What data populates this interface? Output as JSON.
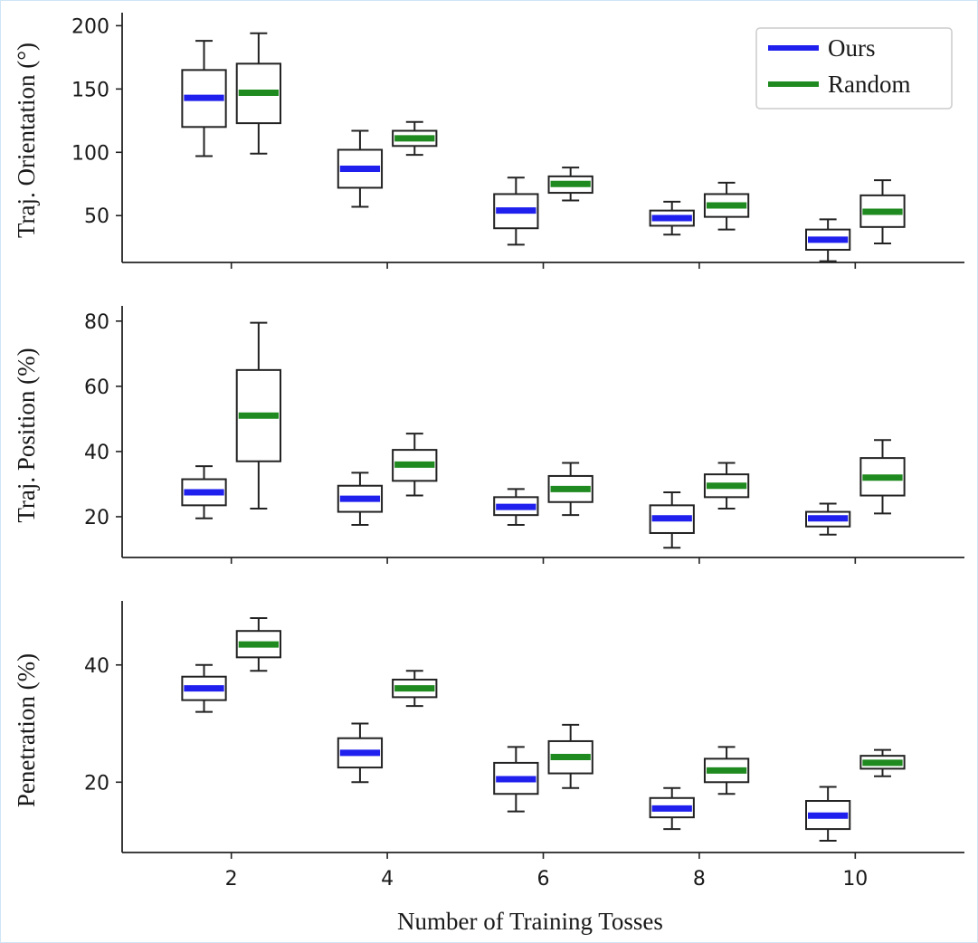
{
  "chart_data": [
    {
      "type": "box",
      "ylabel": "Traj. Orientation (°)",
      "ylim": [
        13,
        206
      ],
      "yticks": [
        50,
        100,
        150,
        200
      ],
      "show_x_labels": false,
      "legend": {
        "position": "top-right",
        "entries": [
          "Ours",
          "Random"
        ]
      },
      "series": [
        {
          "name": "Ours",
          "color": "#1f1fee",
          "boxes": [
            {
              "x": 2,
              "min": 97,
              "q1": 120,
              "median": 143,
              "q3": 165,
              "max": 188
            },
            {
              "x": 4,
              "min": 57,
              "q1": 72,
              "median": 87,
              "q3": 102,
              "max": 117
            },
            {
              "x": 6,
              "min": 27,
              "q1": 40,
              "median": 54,
              "q3": 67,
              "max": 80
            },
            {
              "x": 8,
              "min": 35,
              "q1": 42,
              "median": 48,
              "q3": 54,
              "max": 61
            },
            {
              "x": 10,
              "min": 14,
              "q1": 23,
              "median": 31,
              "q3": 39,
              "max": 47
            }
          ]
        },
        {
          "name": "Random",
          "color": "#1f8a1f",
          "boxes": [
            {
              "x": 2,
              "min": 99,
              "q1": 123,
              "median": 147,
              "q3": 170,
              "max": 194
            },
            {
              "x": 4,
              "min": 98,
              "q1": 105,
              "median": 111,
              "q3": 117,
              "max": 124
            },
            {
              "x": 6,
              "min": 62,
              "q1": 68,
              "median": 75,
              "q3": 81,
              "max": 88
            },
            {
              "x": 8,
              "min": 39,
              "q1": 49,
              "median": 58,
              "q3": 67,
              "max": 76
            },
            {
              "x": 10,
              "min": 28,
              "q1": 41,
              "median": 53,
              "q3": 66,
              "max": 78
            }
          ]
        }
      ]
    },
    {
      "type": "box",
      "ylabel": "Traj. Position (%)",
      "ylim": [
        7.5,
        83
      ],
      "yticks": [
        20,
        40,
        60,
        80
      ],
      "show_x_labels": false,
      "series": [
        {
          "name": "Ours",
          "color": "#1f1fee",
          "boxes": [
            {
              "x": 2,
              "min": 19.5,
              "q1": 23.5,
              "median": 27.5,
              "q3": 31.5,
              "max": 35.5
            },
            {
              "x": 4,
              "min": 17.5,
              "q1": 21.5,
              "median": 25.5,
              "q3": 29.5,
              "max": 33.5
            },
            {
              "x": 6,
              "min": 17.5,
              "q1": 20.5,
              "median": 23,
              "q3": 26,
              "max": 28.5
            },
            {
              "x": 8,
              "min": 10.5,
              "q1": 15,
              "median": 19.5,
              "q3": 23.5,
              "max": 27.5
            },
            {
              "x": 10,
              "min": 14.5,
              "q1": 17,
              "median": 19.5,
              "q3": 21.5,
              "max": 24
            }
          ]
        },
        {
          "name": "Random",
          "color": "#1f8a1f",
          "boxes": [
            {
              "x": 2,
              "min": 22.5,
              "q1": 37,
              "median": 51,
              "q3": 65,
              "max": 79.5
            },
            {
              "x": 4,
              "min": 26.5,
              "q1": 31,
              "median": 36,
              "q3": 40.5,
              "max": 45.5
            },
            {
              "x": 6,
              "min": 20.5,
              "q1": 24.5,
              "median": 28.5,
              "q3": 32.5,
              "max": 36.5
            },
            {
              "x": 8,
              "min": 22.5,
              "q1": 26,
              "median": 29.5,
              "q3": 33,
              "max": 36.5
            },
            {
              "x": 10,
              "min": 21,
              "q1": 26.5,
              "median": 32,
              "q3": 38,
              "max": 43.5
            }
          ]
        }
      ]
    },
    {
      "type": "box",
      "ylabel": "Penetration (%)",
      "ylim": [
        8,
        50
      ],
      "yticks": [
        20,
        40
      ],
      "show_x_labels": true,
      "xticks": [
        2,
        4,
        6,
        8,
        10
      ],
      "xlim": [
        0.6,
        11.4
      ],
      "xlabel": "Number of Training Tosses",
      "series": [
        {
          "name": "Ours",
          "color": "#1f1fee",
          "boxes": [
            {
              "x": 2,
              "min": 32,
              "q1": 34,
              "median": 36,
              "q3": 38,
              "max": 40
            },
            {
              "x": 4,
              "min": 20,
              "q1": 22.5,
              "median": 25,
              "q3": 27.5,
              "max": 30
            },
            {
              "x": 6,
              "min": 15,
              "q1": 18,
              "median": 20.5,
              "q3": 23.3,
              "max": 26
            },
            {
              "x": 8,
              "min": 12,
              "q1": 14,
              "median": 15.5,
              "q3": 17.3,
              "max": 19
            },
            {
              "x": 10,
              "min": 10,
              "q1": 12,
              "median": 14.3,
              "q3": 16.8,
              "max": 19.2
            }
          ]
        },
        {
          "name": "Random",
          "color": "#1f8a1f",
          "boxes": [
            {
              "x": 2,
              "min": 39,
              "q1": 41.3,
              "median": 43.5,
              "q3": 45.8,
              "max": 48
            },
            {
              "x": 4,
              "min": 33,
              "q1": 34.5,
              "median": 36,
              "q3": 37.5,
              "max": 39
            },
            {
              "x": 6,
              "min": 19,
              "q1": 21.5,
              "median": 24.3,
              "q3": 27,
              "max": 29.8
            },
            {
              "x": 8,
              "min": 18,
              "q1": 20,
              "median": 22,
              "q3": 24,
              "max": 26
            },
            {
              "x": 10,
              "min": 21,
              "q1": 22.3,
              "median": 23.3,
              "q3": 24.5,
              "max": 25.5
            }
          ]
        }
      ]
    }
  ]
}
